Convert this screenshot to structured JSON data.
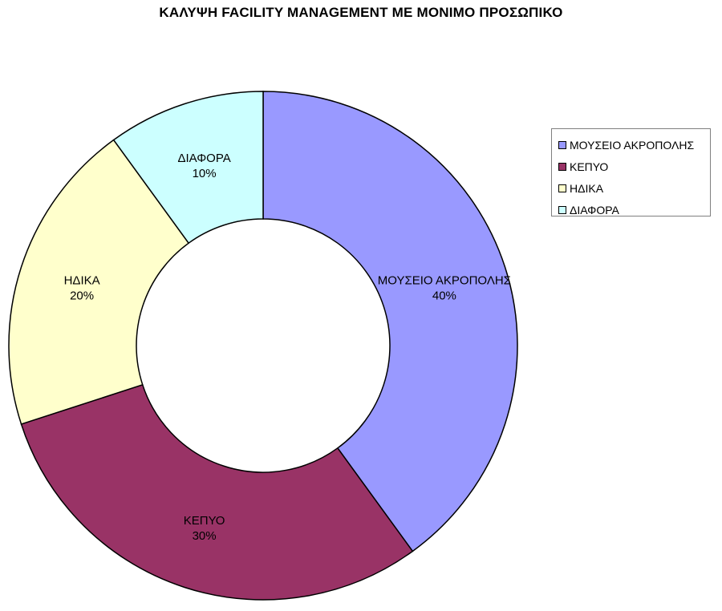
{
  "chart_data": {
    "type": "pie",
    "variant": "donut",
    "title": "ΚΑΛΥΨΗ FACILITY MANAGEMENT ΜΕ ΜΟΝΙΜΟ ΠΡΟΣΩΠΙΚΟ",
    "legend_position": "right",
    "slices": [
      {
        "name": "ΜΟΥΣΕΙΟ ΑΚΡΟΠΟΛΗΣ",
        "value": 40,
        "label": "40%",
        "color": "#9999FF"
      },
      {
        "name": "ΚΕΠΥΟ",
        "value": 30,
        "label": "30%",
        "color": "#993366"
      },
      {
        "name": "ΗΔΙΚΑ",
        "value": 20,
        "label": "20%",
        "color": "#FFFFCC"
      },
      {
        "name": "ΔΙΑΦΟΡΑ",
        "value": 10,
        "label": "10%",
        "color": "#CCFFFF"
      }
    ]
  }
}
